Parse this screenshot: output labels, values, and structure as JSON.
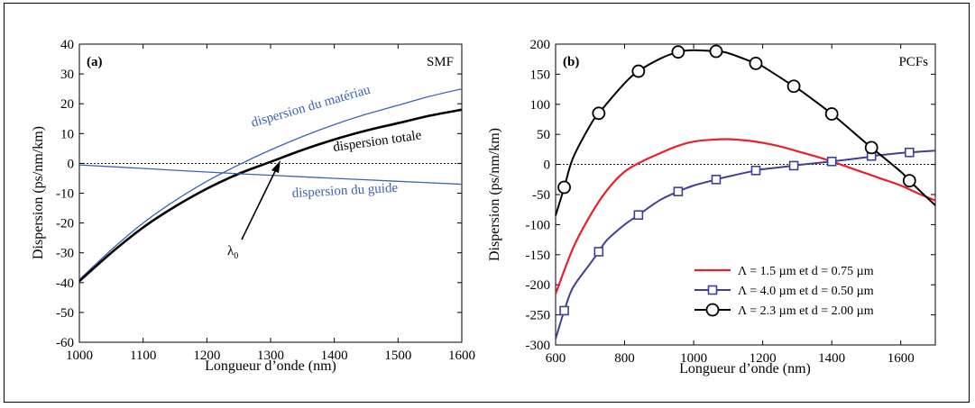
{
  "chart_data": [
    {
      "type": "line",
      "panel_label": "(a)",
      "corner_label": "SMF",
      "xlabel": "Longueur d’onde (nm)",
      "ylabel": "Dispersion (ps/nm/km)",
      "xlim": [
        1000,
        1600
      ],
      "ylim": [
        -60,
        40
      ],
      "xticks": [
        1000,
        1100,
        1200,
        1300,
        1400,
        1500,
        1600
      ],
      "yticks": [
        40,
        30,
        20,
        10,
        0,
        -10,
        -20,
        -30,
        -40,
        -50,
        -60
      ],
      "zero_line": "dotted",
      "series": [
        {
          "name": "dispersion du matériau",
          "color": "#3a64b4",
          "x": [
            1000,
            1050,
            1100,
            1150,
            1200,
            1250,
            1300,
            1350,
            1400,
            1450,
            1500,
            1550,
            1600
          ],
          "y": [
            -39,
            -29,
            -20,
            -12.5,
            -6,
            -0.5,
            4.5,
            9,
            13,
            16.5,
            19.5,
            22.5,
            25
          ]
        },
        {
          "name": "dispersion totale",
          "color": "#000000",
          "x": [
            1000,
            1050,
            1100,
            1150,
            1200,
            1250,
            1300,
            1350,
            1400,
            1450,
            1500,
            1550,
            1600
          ],
          "y": [
            -39.5,
            -30,
            -21.5,
            -14.5,
            -8.5,
            -3.5,
            0.5,
            4.5,
            8,
            11,
            13.5,
            16,
            18
          ]
        },
        {
          "name": "dispersion du guide",
          "color": "#3a64b4",
          "x": [
            1000,
            1100,
            1200,
            1300,
            1400,
            1500,
            1600
          ],
          "y": [
            -0.5,
            -1.7,
            -2.9,
            -4,
            -5,
            -6,
            -7
          ]
        }
      ],
      "annotations": [
        {
          "text": "dispersion du matériau",
          "color": "#3a64b4"
        },
        {
          "text": "dispersion totale",
          "color": "#000000"
        },
        {
          "text": "dispersion du guide",
          "color": "#3a64b4"
        },
        {
          "text": "λ",
          "subscript": "0",
          "arrow_to": [
            1310,
            0
          ]
        }
      ]
    },
    {
      "type": "line",
      "panel_label": "(b)",
      "corner_label": "PCFs",
      "xlabel": "Longueur d’onde (nm)",
      "ylabel": "Dispersion (ps/nm/km)",
      "xlim": [
        600,
        1700
      ],
      "ylim": [
        -300,
        200
      ],
      "xticks": [
        600,
        800,
        1000,
        1200,
        1400,
        1600
      ],
      "yticks": [
        200,
        150,
        100,
        50,
        0,
        -50,
        -100,
        -150,
        -200,
        -250,
        -300
      ],
      "zero_line": "dotted",
      "legend_position": "bottom-right",
      "series": [
        {
          "name": "Λ = 1.5 µm et d = 0.75 µm",
          "color": "#e8202a",
          "marker": "none",
          "x": [
            600,
            650,
            700,
            750,
            800,
            850,
            900,
            950,
            1000,
            1050,
            1100,
            1150,
            1200,
            1250,
            1300,
            1350,
            1400,
            1450,
            1500,
            1550,
            1600,
            1650,
            1700
          ],
          "y": [
            -215,
            -140,
            -85,
            -42,
            -12,
            5,
            18,
            30,
            38,
            41,
            42,
            40,
            36,
            30,
            22,
            14,
            5,
            -5,
            -15,
            -25,
            -35,
            -48,
            -60
          ]
        },
        {
          "name": "Λ = 4.0 µm et d = 0.50 µm",
          "color": "#3f3f9a",
          "marker": "square",
          "x": [
            600,
            625,
            650,
            700,
            725,
            750,
            800,
            840,
            900,
            955,
            1000,
            1065,
            1100,
            1180,
            1200,
            1290,
            1300,
            1400,
            1500,
            1515,
            1600,
            1625,
            1700
          ],
          "y": [
            -290,
            -243,
            -205,
            -165,
            -145,
            -125,
            -100,
            -84,
            -60,
            -45,
            -35,
            -25,
            -20,
            -10,
            -8,
            -2,
            -1,
            5,
            12,
            14,
            19,
            20,
            23
          ]
        },
        {
          "name": "Λ = 2.3 µm et d = 2.00 µm",
          "color": "#000000",
          "marker": "circle",
          "x": [
            600,
            625,
            650,
            700,
            725,
            800,
            840,
            900,
            955,
            1000,
            1065,
            1100,
            1180,
            1200,
            1290,
            1300,
            1400,
            1500,
            1515,
            1600,
            1625,
            1700
          ],
          "y": [
            -85,
            -38,
            10,
            65,
            85,
            135,
            155,
            175,
            187,
            190,
            188,
            185,
            168,
            163,
            130,
            127,
            84,
            35,
            28,
            -12,
            -27,
            -68
          ]
        }
      ],
      "markers": {
        "Λ = 4.0 µm et d = 0.50 µm": {
          "x": [
            625,
            725,
            840,
            955,
            1065,
            1180,
            1290,
            1400,
            1515,
            1625
          ],
          "y": [
            -243,
            -145,
            -84,
            -45,
            -25,
            -10,
            -2,
            5,
            14,
            20
          ]
        },
        "Λ = 2.3 µm et d = 2.00 µm": {
          "x": [
            625,
            725,
            840,
            955,
            1065,
            1180,
            1290,
            1400,
            1515,
            1625
          ],
          "y": [
            -38,
            85,
            155,
            187,
            188,
            168,
            130,
            84,
            28,
            -27
          ]
        }
      }
    }
  ]
}
